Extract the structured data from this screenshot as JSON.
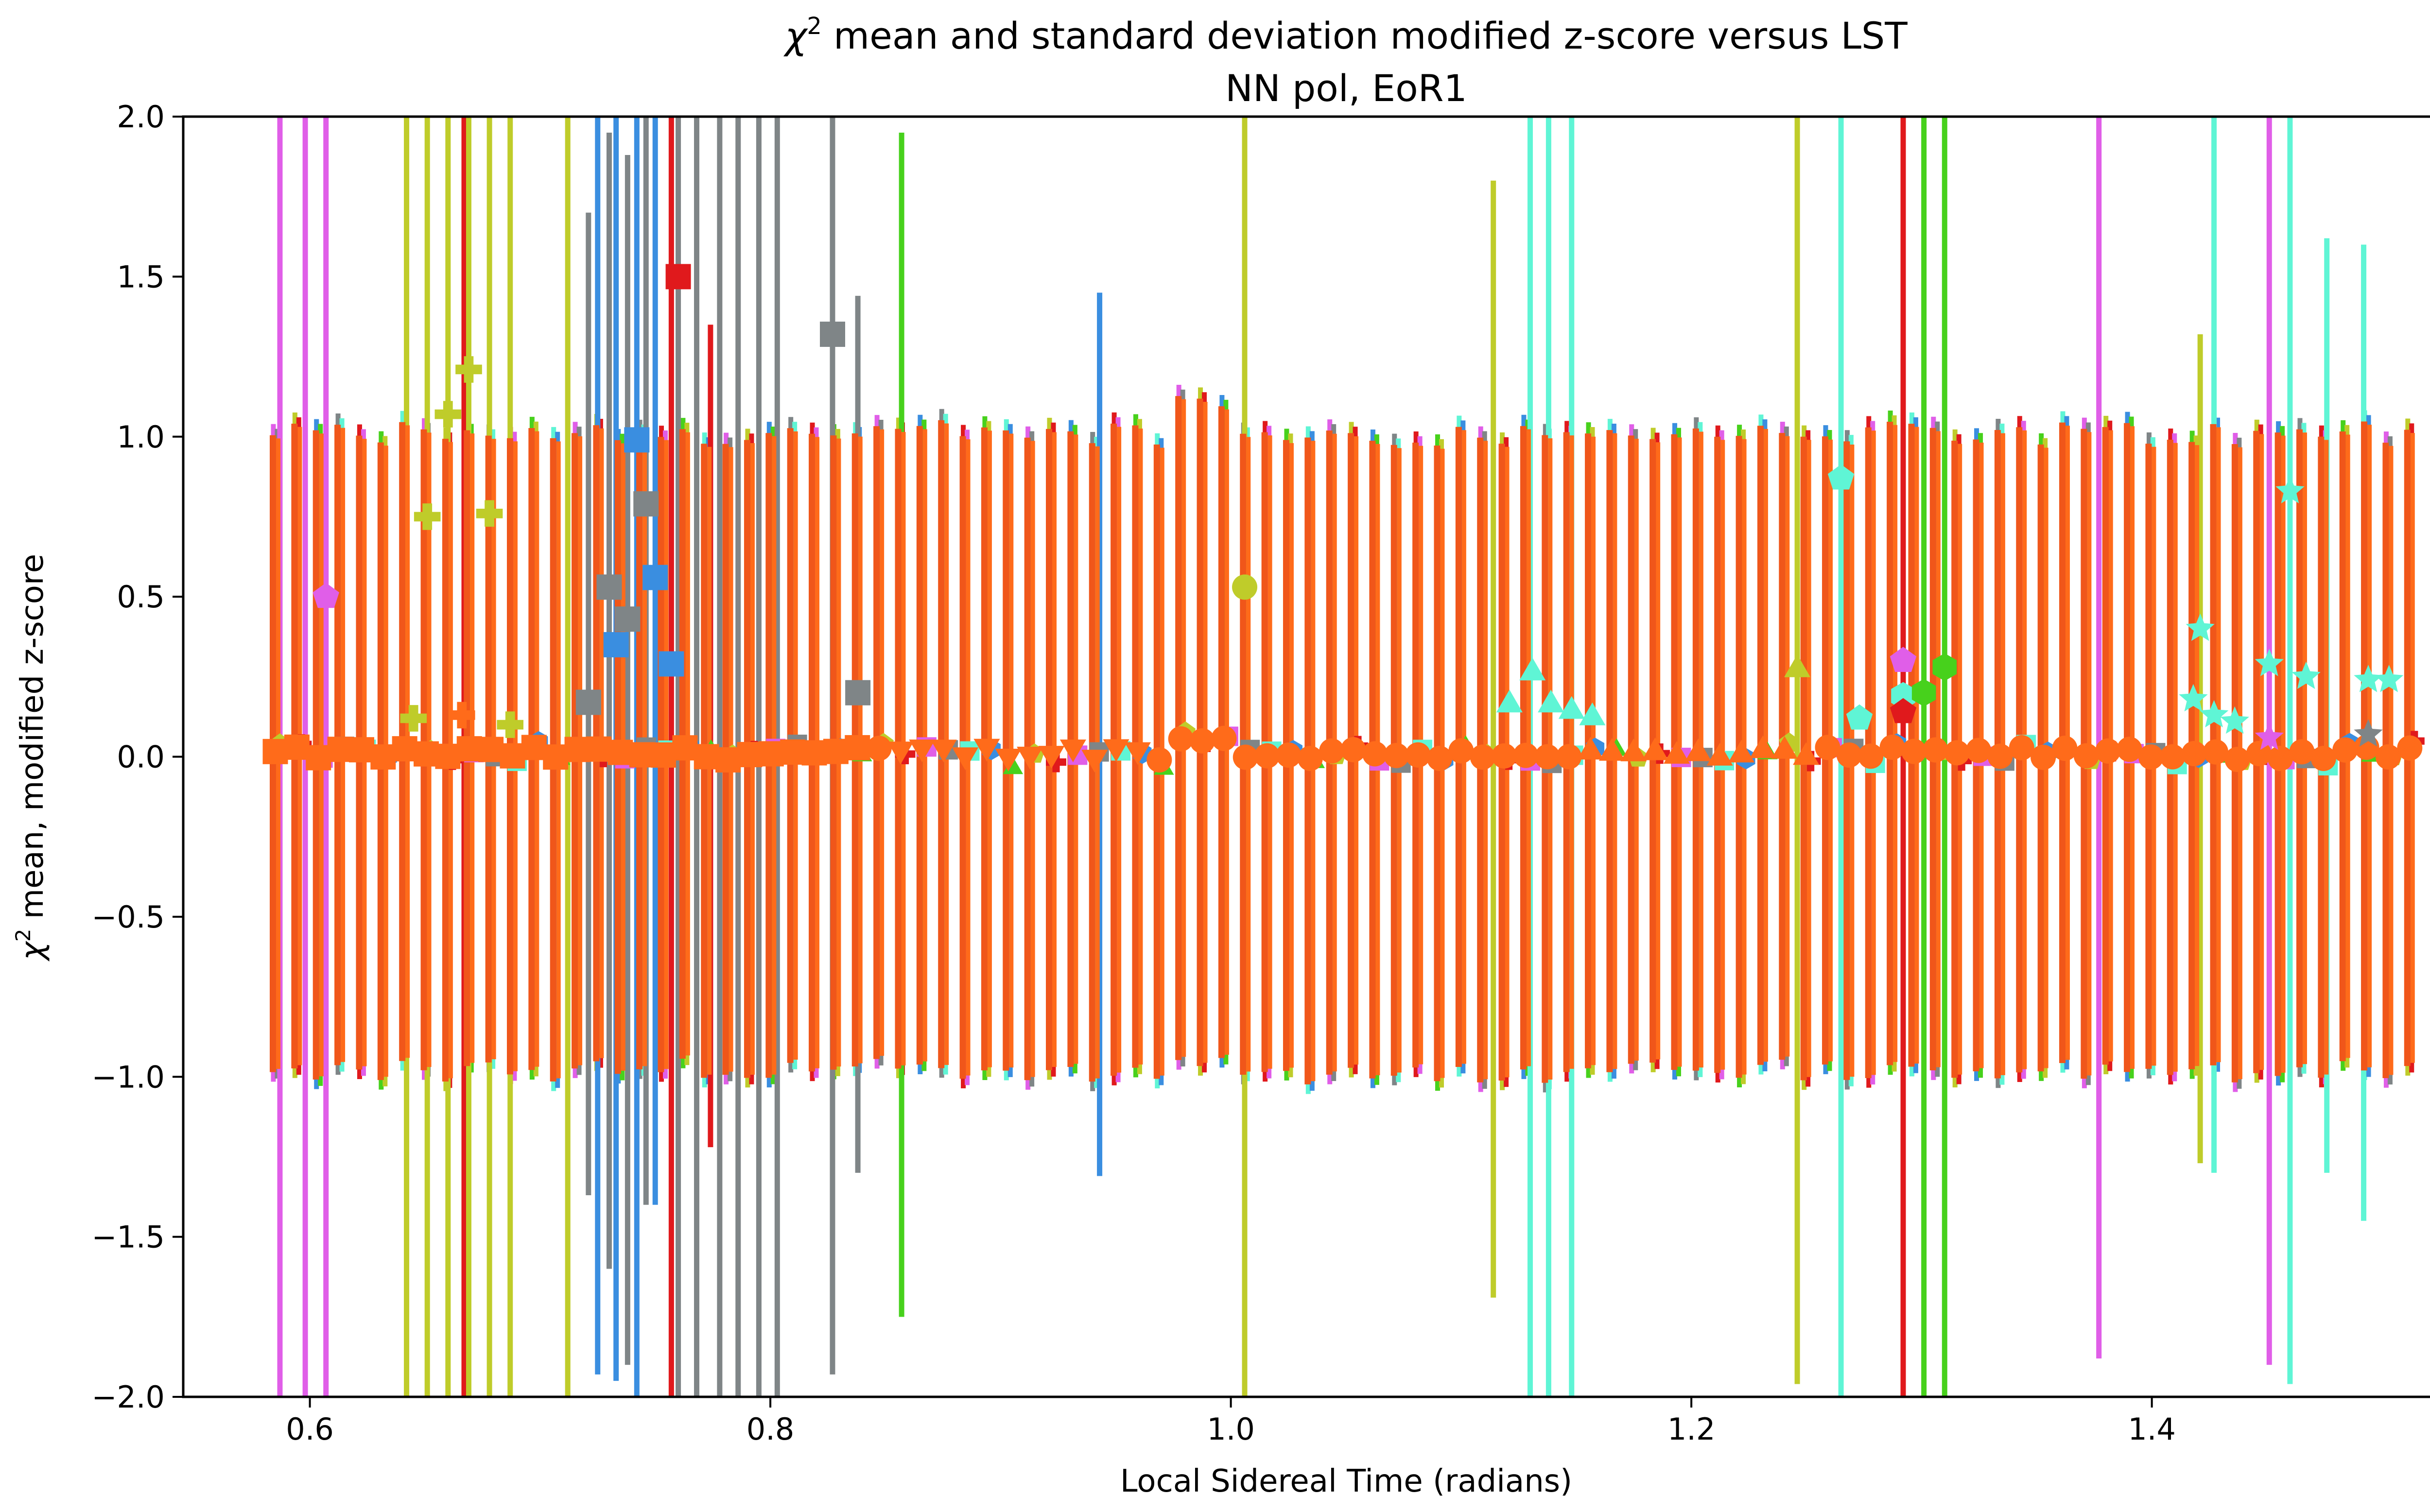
{
  "chart_data": {
    "type": "scatter",
    "title": "χ² mean and standard deviation modified z-score versus LST",
    "title_main": "χ",
    "title_sup": "2",
    "title_rest": " mean and standard deviation modified z-score versus LST",
    "subtitle": "NN pol, EoR1",
    "xlabel": "Local Sidereal Time (radians)",
    "ylabel": "χ² mean, modified z-score",
    "ylabel_main": "χ",
    "ylabel_sup": "2",
    "ylabel_rest": " mean, modified z-score",
    "xlim": [
      0.545,
      1.555
    ],
    "ylim": [
      -2.0,
      2.0
    ],
    "x_ticks": [
      0.6,
      0.8,
      1.0,
      1.2,
      1.4
    ],
    "x_tick_labels": [
      "0.6",
      "0.8",
      "1.0",
      "1.2",
      "1.4"
    ],
    "y_ticks": [
      -2.0,
      -1.5,
      -1.0,
      -0.5,
      0.0,
      0.5,
      1.0,
      1.5,
      2.0
    ],
    "y_tick_labels": [
      "−2.0",
      "−1.5",
      "−1.0",
      "−0.5",
      "0.0",
      "0.5",
      "1.0",
      "1.5",
      "2.0"
    ],
    "grid": false,
    "legend": "none",
    "x_range": [
      0.585,
      1.512
    ],
    "n_samples": 100,
    "main_series": {
      "name": "main (orange)",
      "color": "#ff6b1a",
      "errbar_color": "#f0561a",
      "marker": "circle",
      "value_range": [
        -0.03,
        0.1
      ],
      "errbar_half_range": [
        0.97,
        1.12
      ]
    },
    "series": [
      {
        "name": "violet",
        "color": "#e05ee8",
        "marker": "pentagon"
      },
      {
        "name": "olive",
        "color": "#bfcc2a",
        "marker": "plus"
      },
      {
        "name": "blue",
        "color": "#3a8ee0",
        "marker": "square"
      },
      {
        "name": "gray",
        "color": "#7f8587",
        "marker": "square"
      },
      {
        "name": "red",
        "color": "#e0191c",
        "marker": "square"
      },
      {
        "name": "green",
        "color": "#47d11c",
        "marker": "hexagon"
      },
      {
        "name": "aqua",
        "color": "#5ff5d5",
        "marker": "triangle"
      }
    ],
    "wide_errorbars": [
      {
        "x": 0.587,
        "ylo": -2.0,
        "yhi": 2.0,
        "color": "#e05ee8"
      },
      {
        "x": 0.598,
        "ylo": -2.0,
        "yhi": 2.0,
        "color": "#e05ee8"
      },
      {
        "x": 0.607,
        "ylo": -2.0,
        "yhi": 2.0,
        "color": "#e05ee8"
      },
      {
        "x": 0.642,
        "ylo": -2.0,
        "yhi": 2.0,
        "color": "#bfcc2a"
      },
      {
        "x": 0.651,
        "ylo": -2.0,
        "yhi": 2.0,
        "color": "#bfcc2a"
      },
      {
        "x": 0.66,
        "ylo": -2.0,
        "yhi": 2.0,
        "color": "#bfcc2a"
      },
      {
        "x": 0.667,
        "ylo": -2.0,
        "yhi": 2.0,
        "color": "#e0191c"
      },
      {
        "x": 0.669,
        "ylo": -2.0,
        "yhi": 2.0,
        "color": "#bfcc2a"
      },
      {
        "x": 0.678,
        "ylo": -2.0,
        "yhi": 2.0,
        "color": "#bfcc2a"
      },
      {
        "x": 0.687,
        "ylo": -2.0,
        "yhi": 2.0,
        "color": "#bfcc2a"
      },
      {
        "x": 0.712,
        "ylo": -2.0,
        "yhi": 2.0,
        "color": "#bfcc2a"
      },
      {
        "x": 0.721,
        "ylo": -1.37,
        "yhi": 1.7,
        "color": "#7f8587"
      },
      {
        "x": 0.725,
        "ylo": -1.93,
        "yhi": 2.0,
        "color": "#3a8ee0"
      },
      {
        "x": 0.73,
        "ylo": -1.6,
        "yhi": 1.95,
        "color": "#7f8587"
      },
      {
        "x": 0.733,
        "ylo": -1.95,
        "yhi": 2.0,
        "color": "#3a8ee0"
      },
      {
        "x": 0.738,
        "ylo": -1.9,
        "yhi": 1.88,
        "color": "#7f8587"
      },
      {
        "x": 0.742,
        "ylo": -2.0,
        "yhi": 2.0,
        "color": "#3a8ee0"
      },
      {
        "x": 0.746,
        "ylo": -1.4,
        "yhi": 2.0,
        "color": "#7f8587"
      },
      {
        "x": 0.75,
        "ylo": -1.4,
        "yhi": 2.0,
        "color": "#3a8ee0"
      },
      {
        "x": 0.757,
        "ylo": -2.0,
        "yhi": 2.0,
        "color": "#e0191c"
      },
      {
        "x": 0.76,
        "ylo": -2.0,
        "yhi": 2.0,
        "color": "#7f8587"
      },
      {
        "x": 0.768,
        "ylo": -2.0,
        "yhi": 2.0,
        "color": "#7f8587"
      },
      {
        "x": 0.774,
        "ylo": -1.22,
        "yhi": 1.35,
        "color": "#e0191c"
      },
      {
        "x": 0.778,
        "ylo": -2.0,
        "yhi": 2.0,
        "color": "#7f8587"
      },
      {
        "x": 0.786,
        "ylo": -2.0,
        "yhi": 2.0,
        "color": "#7f8587"
      },
      {
        "x": 0.795,
        "ylo": -2.0,
        "yhi": 2.0,
        "color": "#7f8587"
      },
      {
        "x": 0.803,
        "ylo": -2.0,
        "yhi": 2.0,
        "color": "#7f8587"
      },
      {
        "x": 0.827,
        "ylo": -1.93,
        "yhi": 2.0,
        "color": "#7f8587"
      },
      {
        "x": 0.838,
        "ylo": -1.3,
        "yhi": 1.44,
        "color": "#7f8587"
      },
      {
        "x": 0.857,
        "ylo": -1.75,
        "yhi": 1.95,
        "color": "#47d11c"
      },
      {
        "x": 0.943,
        "ylo": -1.31,
        "yhi": 1.45,
        "color": "#3a8ee0"
      },
      {
        "x": 1.006,
        "ylo": -2.0,
        "yhi": 2.0,
        "color": "#bfcc2a"
      },
      {
        "x": 1.114,
        "ylo": -1.69,
        "yhi": 1.8,
        "color": "#bfcc2a"
      },
      {
        "x": 1.13,
        "ylo": -2.0,
        "yhi": 2.0,
        "color": "#5ff5d5"
      },
      {
        "x": 1.138,
        "ylo": -2.0,
        "yhi": 2.0,
        "color": "#5ff5d5"
      },
      {
        "x": 1.148,
        "ylo": -2.0,
        "yhi": 2.0,
        "color": "#5ff5d5"
      },
      {
        "x": 1.246,
        "ylo": -1.96,
        "yhi": 2.0,
        "color": "#bfcc2a"
      },
      {
        "x": 1.265,
        "ylo": -2.0,
        "yhi": 2.0,
        "color": "#5ff5d5"
      },
      {
        "x": 1.292,
        "ylo": -2.0,
        "yhi": 2.0,
        "color": "#e0191c"
      },
      {
        "x": 1.301,
        "ylo": -2.0,
        "yhi": 2.0,
        "color": "#47d11c"
      },
      {
        "x": 1.31,
        "ylo": -2.0,
        "yhi": 2.0,
        "color": "#47d11c"
      },
      {
        "x": 1.377,
        "ylo": -1.88,
        "yhi": 2.0,
        "color": "#e05ee8"
      },
      {
        "x": 1.421,
        "ylo": -1.27,
        "yhi": 1.32,
        "color": "#bfcc2a"
      },
      {
        "x": 1.427,
        "ylo": -1.3,
        "yhi": 2.0,
        "color": "#5ff5d5"
      },
      {
        "x": 1.451,
        "ylo": -1.9,
        "yhi": 2.0,
        "color": "#e05ee8"
      },
      {
        "x": 1.46,
        "ylo": -1.96,
        "yhi": 2.0,
        "color": "#5ff5d5"
      },
      {
        "x": 1.476,
        "ylo": -1.3,
        "yhi": 1.62,
        "color": "#5ff5d5"
      },
      {
        "x": 1.492,
        "ylo": -1.45,
        "yhi": 1.6,
        "color": "#5ff5d5"
      }
    ],
    "outlier_points": [
      {
        "x": 0.607,
        "y": 0.5,
        "color": "#e05ee8",
        "marker": "pentagon"
      },
      {
        "x": 0.645,
        "y": 0.12,
        "color": "#bfcc2a",
        "marker": "plus"
      },
      {
        "x": 0.651,
        "y": 0.75,
        "color": "#bfcc2a",
        "marker": "plus"
      },
      {
        "x": 0.66,
        "y": 1.07,
        "color": "#bfcc2a",
        "marker": "plus"
      },
      {
        "x": 0.669,
        "y": 1.21,
        "color": "#bfcc2a",
        "marker": "plus"
      },
      {
        "x": 0.678,
        "y": 0.76,
        "color": "#bfcc2a",
        "marker": "plus"
      },
      {
        "x": 0.666,
        "y": 0.13,
        "color": "#ff6b1a",
        "marker": "plus"
      },
      {
        "x": 0.687,
        "y": 0.1,
        "color": "#bfcc2a",
        "marker": "plus"
      },
      {
        "x": 0.721,
        "y": 0.17,
        "color": "#7f8587",
        "marker": "square"
      },
      {
        "x": 0.73,
        "y": 0.53,
        "color": "#7f8587",
        "marker": "square"
      },
      {
        "x": 0.733,
        "y": 0.35,
        "color": "#3a8ee0",
        "marker": "square"
      },
      {
        "x": 0.738,
        "y": 0.43,
        "color": "#7f8587",
        "marker": "square"
      },
      {
        "x": 0.742,
        "y": 0.99,
        "color": "#3a8ee0",
        "marker": "square"
      },
      {
        "x": 0.746,
        "y": 0.79,
        "color": "#7f8587",
        "marker": "square"
      },
      {
        "x": 0.75,
        "y": 0.56,
        "color": "#3a8ee0",
        "marker": "square"
      },
      {
        "x": 0.757,
        "y": 0.29,
        "color": "#3a8ee0",
        "marker": "square"
      },
      {
        "x": 0.76,
        "y": 1.5,
        "color": "#e0191c",
        "marker": "square"
      },
      {
        "x": 0.827,
        "y": 1.32,
        "color": "#7f8587",
        "marker": "square"
      },
      {
        "x": 0.838,
        "y": 0.2,
        "color": "#7f8587",
        "marker": "square"
      },
      {
        "x": 1.006,
        "y": 0.53,
        "color": "#bfcc2a",
        "marker": "circle"
      },
      {
        "x": 1.121,
        "y": 0.17,
        "color": "#5ff5d5",
        "marker": "triangle"
      },
      {
        "x": 1.131,
        "y": 0.27,
        "color": "#5ff5d5",
        "marker": "triangle"
      },
      {
        "x": 1.139,
        "y": 0.17,
        "color": "#5ff5d5",
        "marker": "triangle"
      },
      {
        "x": 1.148,
        "y": 0.15,
        "color": "#5ff5d5",
        "marker": "triangle"
      },
      {
        "x": 1.157,
        "y": 0.13,
        "color": "#5ff5d5",
        "marker": "triangle"
      },
      {
        "x": 1.246,
        "y": 0.28,
        "color": "#bfcc2a",
        "marker": "triangle"
      },
      {
        "x": 1.265,
        "y": 0.87,
        "color": "#5ff5d5",
        "marker": "pentagon"
      },
      {
        "x": 1.273,
        "y": 0.12,
        "color": "#5ff5d5",
        "marker": "pentagon"
      },
      {
        "x": 1.292,
        "y": 0.3,
        "color": "#e05ee8",
        "marker": "pentagon"
      },
      {
        "x": 1.292,
        "y": 0.19,
        "color": "#5ff5d5",
        "marker": "hexagon"
      },
      {
        "x": 1.292,
        "y": 0.14,
        "color": "#e0191c",
        "marker": "pentagon"
      },
      {
        "x": 1.301,
        "y": 0.2,
        "color": "#47d11c",
        "marker": "hexagon"
      },
      {
        "x": 1.31,
        "y": 0.28,
        "color": "#47d11c",
        "marker": "hexagon"
      },
      {
        "x": 1.418,
        "y": 0.18,
        "color": "#5ff5d5",
        "marker": "star"
      },
      {
        "x": 1.427,
        "y": 0.13,
        "color": "#5ff5d5",
        "marker": "star"
      },
      {
        "x": 1.436,
        "y": 0.11,
        "color": "#5ff5d5",
        "marker": "star"
      },
      {
        "x": 1.421,
        "y": 0.4,
        "color": "#5ff5d5",
        "marker": "star"
      },
      {
        "x": 1.451,
        "y": 0.29,
        "color": "#5ff5d5",
        "marker": "star"
      },
      {
        "x": 1.46,
        "y": 0.83,
        "color": "#5ff5d5",
        "marker": "star"
      },
      {
        "x": 1.467,
        "y": 0.25,
        "color": "#5ff5d5",
        "marker": "star"
      },
      {
        "x": 1.494,
        "y": 0.24,
        "color": "#5ff5d5",
        "marker": "star"
      },
      {
        "x": 1.503,
        "y": 0.24,
        "color": "#5ff5d5",
        "marker": "star"
      },
      {
        "x": 1.451,
        "y": 0.06,
        "color": "#e05ee8",
        "marker": "star"
      },
      {
        "x": 1.494,
        "y": 0.07,
        "color": "#7f8587",
        "marker": "star"
      }
    ]
  }
}
